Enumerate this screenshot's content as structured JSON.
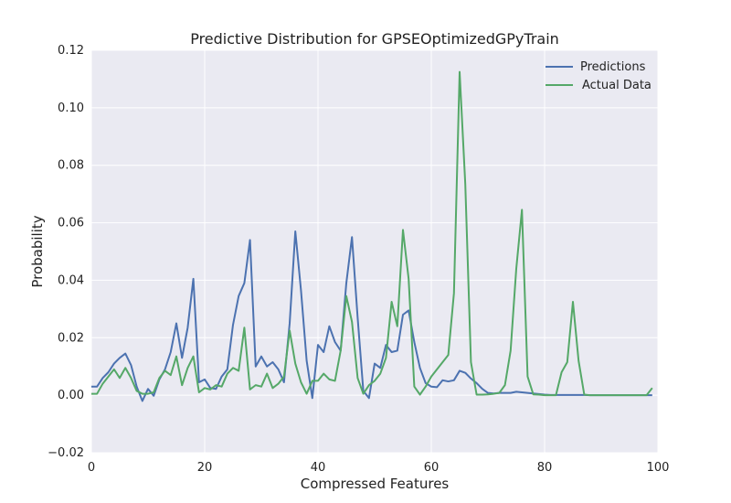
{
  "chart_data": {
    "type": "line",
    "title": "Predictive Distribution for GPSEOptimizedGPyTrain",
    "xlabel": "Compressed Features",
    "ylabel": "Probability",
    "xlim": [
      0,
      100
    ],
    "ylim": [
      -0.02,
      0.12
    ],
    "xticks": [
      0,
      20,
      40,
      60,
      80,
      100
    ],
    "xtick_labels": [
      "0",
      "20",
      "40",
      "60",
      "80",
      "100"
    ],
    "yticks": [
      -0.02,
      0.0,
      0.02,
      0.04,
      0.06,
      0.08,
      0.1,
      0.12
    ],
    "ytick_labels": [
      "−0.02",
      "0.00",
      "0.02",
      "0.04",
      "0.06",
      "0.08",
      "0.10",
      "0.12"
    ],
    "grid": true,
    "legend_position": "top-right",
    "background": "#eaeaf2",
    "series": [
      {
        "name": "Predictions",
        "color": "#4c72b0",
        "x": [
          0,
          1,
          2,
          3,
          4,
          5,
          6,
          7,
          8,
          9,
          10,
          11,
          12,
          13,
          14,
          15,
          16,
          17,
          18,
          19,
          20,
          21,
          22,
          23,
          24,
          25,
          26,
          27,
          28,
          29,
          30,
          31,
          32,
          33,
          34,
          35,
          36,
          37,
          38,
          39,
          40,
          41,
          42,
          43,
          44,
          45,
          46,
          47,
          48,
          49,
          50,
          51,
          52,
          53,
          54,
          55,
          56,
          57,
          58,
          59,
          60,
          61,
          62,
          63,
          64,
          65,
          66,
          67,
          68,
          69,
          70,
          71,
          72,
          73,
          74,
          75,
          76,
          77,
          78,
          79,
          80,
          81,
          82,
          83,
          84,
          85,
          86,
          87,
          88,
          89,
          90,
          91,
          92,
          93,
          94,
          95,
          96,
          97,
          98,
          99
        ],
        "values": [
          0.003,
          0.003,
          0.006,
          0.008,
          0.011,
          0.013,
          0.0145,
          0.0105,
          0.003,
          -0.002,
          0.0022,
          -0.0002,
          0.0055,
          0.009,
          0.015,
          0.025,
          0.013,
          0.0235,
          0.0405,
          0.0045,
          0.0055,
          0.0025,
          0.0022,
          0.0065,
          0.009,
          0.0245,
          0.0345,
          0.039,
          0.054,
          0.01,
          0.0135,
          0.01,
          0.0115,
          0.009,
          0.0045,
          0.025,
          0.057,
          0.0365,
          0.012,
          -0.001,
          0.0175,
          0.015,
          0.024,
          0.0185,
          0.0155,
          0.039,
          0.055,
          0.027,
          0.0015,
          -0.001,
          0.011,
          0.0095,
          0.0175,
          0.015,
          0.0155,
          0.028,
          0.0295,
          0.0185,
          0.0095,
          0.0042,
          0.003,
          0.0028,
          0.0052,
          0.0048,
          0.0052,
          0.0085,
          0.0078,
          0.0058,
          0.0042,
          0.0022,
          0.0008,
          0.0006,
          0.0008,
          0.0008,
          0.0008,
          0.0012,
          0.001,
          0.0008,
          0.0006,
          0.0004,
          0.0002,
          0.0001,
          0.0001,
          0.0001,
          0.0001,
          0.0001,
          0.0001,
          0.0001,
          0.0,
          0.0,
          0.0,
          0.0,
          0.0,
          0.0,
          0.0,
          0.0,
          0.0,
          0.0,
          0.0,
          0.0
        ]
      },
      {
        "name": "Actual Data",
        "color": "#55a868",
        "x": [
          0,
          1,
          2,
          3,
          4,
          5,
          6,
          7,
          8,
          9,
          10,
          11,
          12,
          13,
          14,
          15,
          16,
          17,
          18,
          19,
          20,
          21,
          22,
          23,
          24,
          25,
          26,
          27,
          28,
          29,
          30,
          31,
          32,
          33,
          34,
          35,
          36,
          37,
          38,
          39,
          40,
          41,
          42,
          43,
          44,
          45,
          46,
          47,
          48,
          49,
          50,
          51,
          52,
          53,
          54,
          55,
          56,
          57,
          58,
          59,
          60,
          61,
          62,
          63,
          64,
          65,
          66,
          67,
          68,
          69,
          70,
          71,
          72,
          73,
          74,
          75,
          76,
          77,
          78,
          79,
          80,
          81,
          82,
          83,
          84,
          85,
          86,
          87,
          88,
          89,
          90,
          91,
          92,
          93,
          94,
          95,
          96,
          97,
          98,
          99
        ],
        "values": [
          0.0005,
          0.0005,
          0.004,
          0.0065,
          0.009,
          0.006,
          0.0095,
          0.006,
          0.0015,
          0.0005,
          0.0005,
          0.001,
          0.006,
          0.0085,
          0.007,
          0.0135,
          0.0035,
          0.0095,
          0.0135,
          0.001,
          0.0025,
          0.002,
          0.0035,
          0.003,
          0.0075,
          0.0095,
          0.0085,
          0.0235,
          0.002,
          0.0035,
          0.003,
          0.0075,
          0.0025,
          0.004,
          0.0065,
          0.0225,
          0.011,
          0.0045,
          0.0005,
          0.005,
          0.005,
          0.0075,
          0.0055,
          0.005,
          0.0155,
          0.0345,
          0.0255,
          0.006,
          0.0005,
          0.0035,
          0.005,
          0.0075,
          0.013,
          0.0325,
          0.024,
          0.0575,
          0.0405,
          0.003,
          0.0002,
          0.003,
          0.0065,
          0.009,
          0.0115,
          0.014,
          0.0355,
          0.1125,
          0.0735,
          0.0115,
          0.0002,
          0.0002,
          0.0003,
          0.0005,
          0.0008,
          0.0035,
          0.0155,
          0.044,
          0.0645,
          0.0065,
          0.0003,
          0.0002,
          0.0,
          0.0,
          0.0,
          0.008,
          0.0115,
          0.0325,
          0.012,
          0.0002,
          0.0,
          0.0,
          0.0,
          0.0,
          0.0,
          0.0,
          0.0,
          0.0,
          0.0,
          0.0,
          0.0,
          0.0025
        ]
      }
    ]
  }
}
